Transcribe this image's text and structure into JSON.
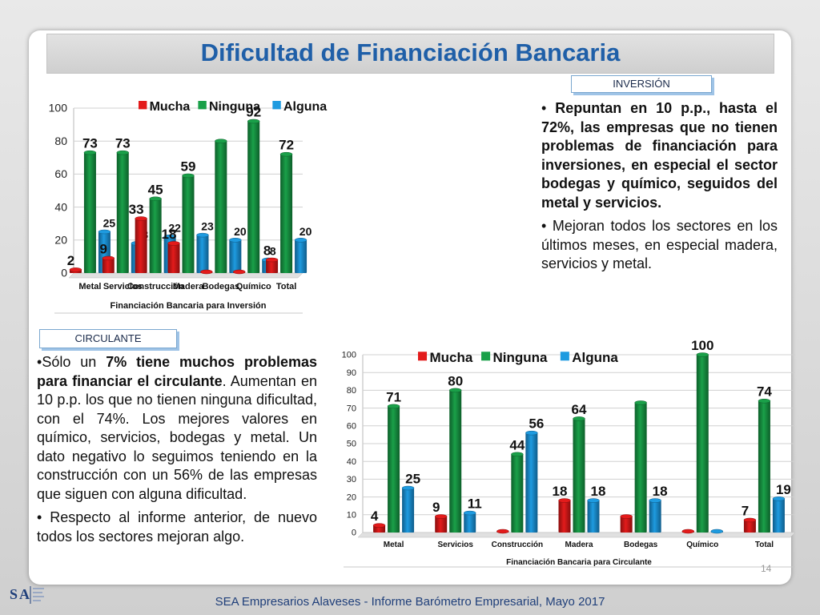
{
  "slide": {
    "title": "Dificultad de Financiación Bancaria",
    "inversion_tag": "INVERSIÓN",
    "circulante_tag": "CIRCULANTE",
    "footer": "SEA Empresarios Alaveses  -  Informe Barómetro Empresarial, Mayo 2017",
    "page_number": "14",
    "logo_text": "SEA"
  },
  "inversion_text": {
    "p1_bold": "Repuntan en 10 p.p.",
    "p1_rest": ", hasta el 72%, las empresas que no tienen problemas de financiación para inversiones, en especial el sector bodegas y químico, seguidos del metal y servicios.",
    "p2": "Mejoran todos los sectores en los últimos meses, en especial madera, servicios y metal."
  },
  "circulante_text": {
    "p1_a": "Sólo un ",
    "p1_b": "7% tiene muchos problemas para financiar el circulante",
    "p1_c": ". Aumentan en 10 p.p. los que no tienen ninguna dificultad, con el 74%. Los mejores valores en químico, servicios, bodegas y metal. Un dato negativo lo seguimos teniendo en la construcción con un 56% de las empresas que siguen con alguna dificultad.",
    "p2": "Respecto al informe anterior, de nuevo todos los sectores mejoran algo."
  },
  "colors": {
    "mucha": "#e31b1b",
    "ninguna": "#1aa049",
    "alguna": "#1e9be0",
    "title": "#1f5fa8"
  },
  "chart_data": [
    {
      "type": "bar",
      "xlabel": "Financiación Bancaria para Inversión",
      "categories": [
        "Metal",
        "Servicios",
        "Construcción",
        "Madera",
        "Bodegas",
        "Químico",
        "Total"
      ],
      "ylim": [
        0,
        100
      ],
      "yticks": [
        0,
        20,
        40,
        60,
        80,
        100
      ],
      "legend_position": "top",
      "series": [
        {
          "name": "Mucha",
          "values": [
            2,
            9,
            33,
            18,
            0,
            0,
            8
          ],
          "labels": [
            "2",
            "9",
            "33",
            "18",
            "",
            "",
            "8"
          ]
        },
        {
          "name": "Ninguna",
          "values": [
            73,
            73,
            45,
            59,
            80,
            92,
            72
          ],
          "labels": [
            "73",
            "73",
            "45",
            "59",
            "",
            "92",
            "72"
          ]
        },
        {
          "name": "Alguna",
          "values": [
            25,
            18,
            22,
            23,
            20,
            8,
            20
          ],
          "labels": [
            "25",
            "18",
            "22",
            "23",
            "20",
            "8",
            "20"
          ]
        }
      ]
    },
    {
      "type": "bar",
      "xlabel": "Financiación Bancaria para Circulante",
      "categories": [
        "Metal",
        "Servicios",
        "Construcción",
        "Madera",
        "Bodegas",
        "Químico",
        "Total"
      ],
      "ylim": [
        0,
        100
      ],
      "yticks": [
        0,
        10,
        20,
        30,
        40,
        50,
        60,
        70,
        80,
        90,
        100
      ],
      "legend_position": "top",
      "series": [
        {
          "name": "Mucha",
          "values": [
            4,
            9,
            0,
            18,
            9,
            0,
            7
          ],
          "labels": [
            "4",
            "9",
            "",
            "18",
            "",
            "",
            "7"
          ]
        },
        {
          "name": "Ninguna",
          "values": [
            71,
            80,
            44,
            64,
            73,
            100,
            74
          ],
          "labels": [
            "71",
            "80",
            "44",
            "64",
            "",
            "100",
            "74"
          ]
        },
        {
          "name": "Alguna",
          "values": [
            25,
            11,
            56,
            18,
            18,
            0,
            19
          ],
          "labels": [
            "25",
            "11",
            "56",
            "18",
            "18",
            "",
            "19"
          ]
        }
      ]
    }
  ]
}
